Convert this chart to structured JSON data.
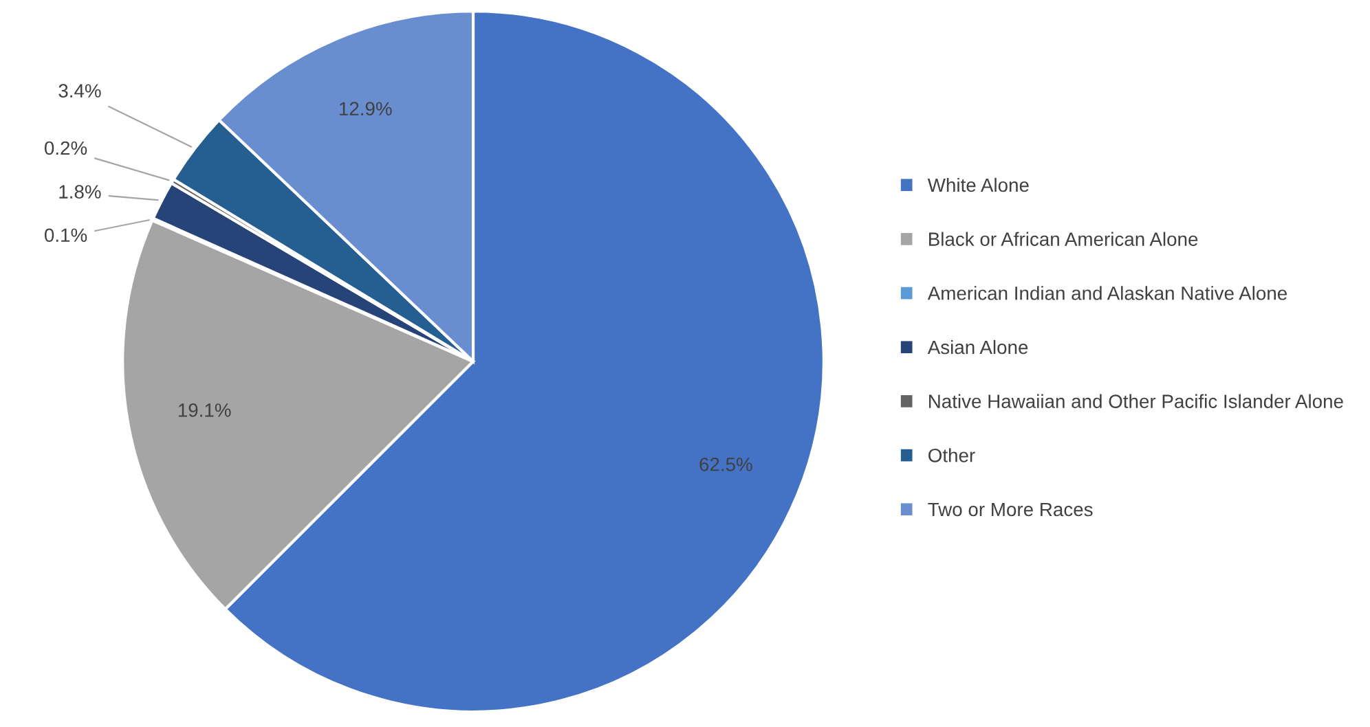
{
  "chart_data": {
    "type": "pie",
    "categories": [
      "White Alone",
      "Black or African American Alone",
      "American Indian and Alaskan Native Alone",
      "Asian Alone",
      "Native Hawaiian and Other Pacific Islander Alone",
      "Other",
      "Two or More Races"
    ],
    "values": [
      62.5,
      19.1,
      0.1,
      1.8,
      0.2,
      3.4,
      12.9
    ],
    "value_labels": [
      "62.5%",
      "19.1%",
      "0.1%",
      "1.8%",
      "0.2%",
      "3.4%",
      "12.9%"
    ],
    "colors": [
      "#4472c4",
      "#a5a5a5",
      "#5b9bd5",
      "#264478",
      "#636363",
      "#255e91",
      "#698ed0"
    ],
    "legend": "right"
  }
}
